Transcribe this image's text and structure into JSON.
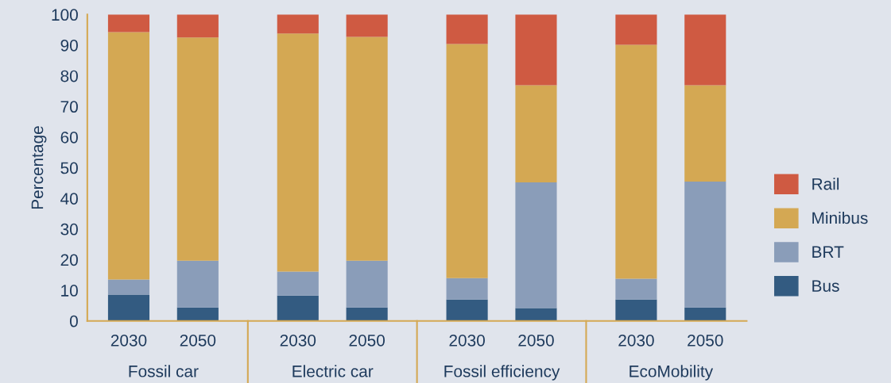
{
  "chart_data": {
    "type": "bar",
    "stacked": true,
    "ylabel": "Percentage",
    "categories": [
      "2030",
      "2050",
      "2030",
      "2050",
      "2030",
      "2050",
      "2030",
      "2050"
    ],
    "annotations": [
      "Fossil car",
      "Electric car",
      "Fossil efficiency",
      "EcoMobility"
    ],
    "series": [
      {
        "name": "Bus",
        "color": "#335b81",
        "values": [
          8.6,
          4.4,
          8.3,
          4.4,
          7.0,
          4.2,
          7.0,
          4.4
        ]
      },
      {
        "name": "BRT",
        "color": "#8a9db9",
        "values": [
          4.9,
          15.3,
          7.8,
          15.3,
          7.0,
          41.0,
          6.8,
          41.1
        ]
      },
      {
        "name": "Minibus",
        "color": "#d4a853",
        "values": [
          80.8,
          72.8,
          77.7,
          73.0,
          76.4,
          31.7,
          76.3,
          31.4
        ]
      },
      {
        "name": "Rail",
        "color": "#cf5a42",
        "values": [
          5.7,
          7.5,
          6.2,
          7.3,
          9.6,
          23.1,
          9.9,
          23.1
        ]
      }
    ],
    "ylim": [
      0,
      100
    ],
    "yticks": [
      0,
      10,
      20,
      30,
      40,
      50,
      60,
      70,
      80,
      90,
      100
    ],
    "grid": false,
    "legend": "right"
  }
}
